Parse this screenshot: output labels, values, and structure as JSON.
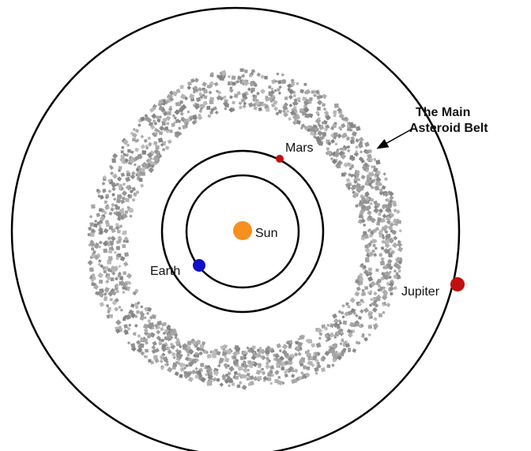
{
  "bodies": [
    {
      "label": "Sun"
    },
    {
      "label": "Earth"
    },
    {
      "label": "Mars"
    },
    {
      "label": "Jupiter"
    }
  ],
  "annotation": {
    "lines": [
      "The Main",
      "Asteroid Belt"
    ]
  }
}
